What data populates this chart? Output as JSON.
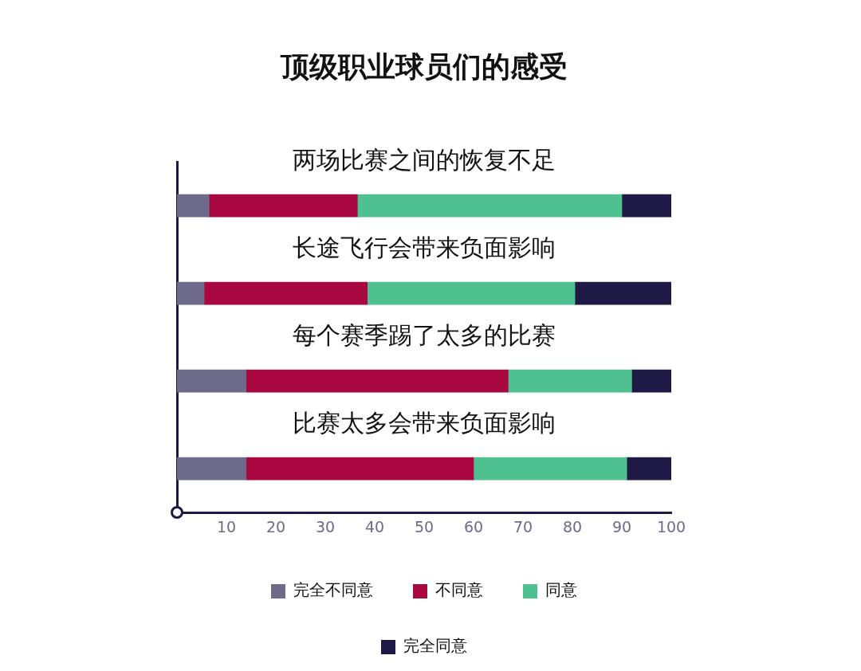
{
  "chart_data": {
    "type": "bar",
    "orientation": "horizontal",
    "stacked": true,
    "title": "顶级职业球员们的感受",
    "categories": [
      "两场比赛之间的恢复不足",
      "长途飞行会带来负面影响",
      "每个赛季踢了太多的比赛",
      "比赛太多会带来负面影响"
    ],
    "series": [
      {
        "name": "完全不同意",
        "color": "#6e6a8a",
        "values": [
          6.5,
          5.5,
          14,
          14
        ]
      },
      {
        "name": "不同意",
        "color": "#a8083f",
        "values": [
          30,
          33,
          53,
          46
        ]
      },
      {
        "name": "同意",
        "color": "#4fc08f",
        "values": [
          53.5,
          42,
          25,
          31
        ]
      },
      {
        "name": "完全同意",
        "color": "#1f1a45",
        "values": [
          10,
          19.5,
          8,
          9
        ]
      }
    ],
    "xlim": [
      0,
      100
    ],
    "xticks": [
      10,
      20,
      30,
      40,
      50,
      60,
      70,
      80,
      90,
      100
    ],
    "grid": false,
    "legend": "bottom"
  }
}
